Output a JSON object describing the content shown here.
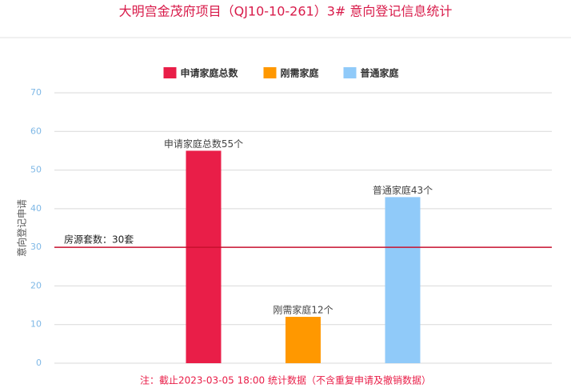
{
  "chart_data": {
    "type": "bar",
    "title": "大明宫金茂府项目（QJ10-10-261）3# 意向登记信息统计",
    "y_label": "意向登记申请",
    "categories": [
      null
    ],
    "series": [
      {
        "name": "申请家庭总数",
        "color": "#e91e48",
        "values": [
          55
        ],
        "value_labels": [
          "申请家庭总数55个"
        ]
      },
      {
        "name": "刚需家庭",
        "color": "#ff9800",
        "values": [
          12
        ],
        "value_labels": [
          "刚需家庭12个"
        ]
      },
      {
        "name": "普通家庭",
        "color": "#90caf9",
        "values": [
          43
        ],
        "value_labels": [
          "普通家庭43个"
        ]
      }
    ],
    "ylim": [
      0,
      70
    ],
    "yticks": [
      0,
      10,
      20,
      30,
      40,
      50,
      60,
      70
    ],
    "grid": true,
    "reference_line": {
      "value": 30,
      "label": "房源套数：30套",
      "color": "#c8102e"
    },
    "note": "注：截止2023-03-05 18:00 统计数据（不含重复申请及撤销数据）"
  }
}
